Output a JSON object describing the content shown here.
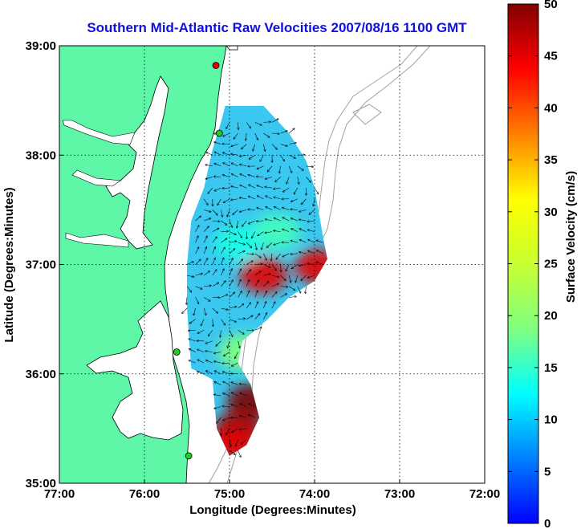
{
  "chart_data": {
    "type": "heatmap",
    "title": "Southern Mid-Atlantic Raw Velocities 2007/08/16 1100 GMT",
    "xlabel": "Longitude (Degrees:Minutes)",
    "ylabel": "Latitude (Degrees:Minutes)",
    "x_ticks": [
      "77:00",
      "76:00",
      "75:00",
      "74:00",
      "73:00",
      "72:00"
    ],
    "y_ticks": [
      "39:00",
      "38:00",
      "37:00",
      "36:00",
      "35:00"
    ],
    "xlim": [
      -77,
      -72
    ],
    "ylim": [
      35,
      39
    ],
    "grid": true,
    "colorbar": {
      "label": "Surface Velocity (cm/s)",
      "range": [
        0,
        50
      ],
      "ticks": [
        "0",
        "5",
        "10",
        "15",
        "20",
        "25",
        "30",
        "35",
        "40",
        "45",
        "50"
      ],
      "colormap": "jet"
    },
    "hotspots": [
      {
        "lon": -74.6,
        "lat": 36.9,
        "speed": 45
      },
      {
        "lon": -73.95,
        "lat": 36.98,
        "speed": 45
      },
      {
        "lon": -74.75,
        "lat": 35.75,
        "speed": 50
      },
      {
        "lon": -74.9,
        "lat": 35.5,
        "speed": 48
      },
      {
        "lon": -74.95,
        "lat": 35.35,
        "speed": 45
      },
      {
        "lon": -74.45,
        "lat": 37.3,
        "speed": 22
      },
      {
        "lon": -74.9,
        "lat": 37.2,
        "speed": 20
      },
      {
        "lon": -74.85,
        "lat": 36.2,
        "speed": 25
      }
    ],
    "radar_sites": [
      {
        "lon": -75.16,
        "lat": 38.82,
        "color": "#e00000"
      },
      {
        "lon": -75.12,
        "lat": 38.2,
        "color": "#22cc22"
      },
      {
        "lon": -75.62,
        "lat": 36.2,
        "color": "#22cc22"
      },
      {
        "lon": -75.48,
        "lat": 35.25,
        "color": "#22cc22"
      }
    ]
  }
}
